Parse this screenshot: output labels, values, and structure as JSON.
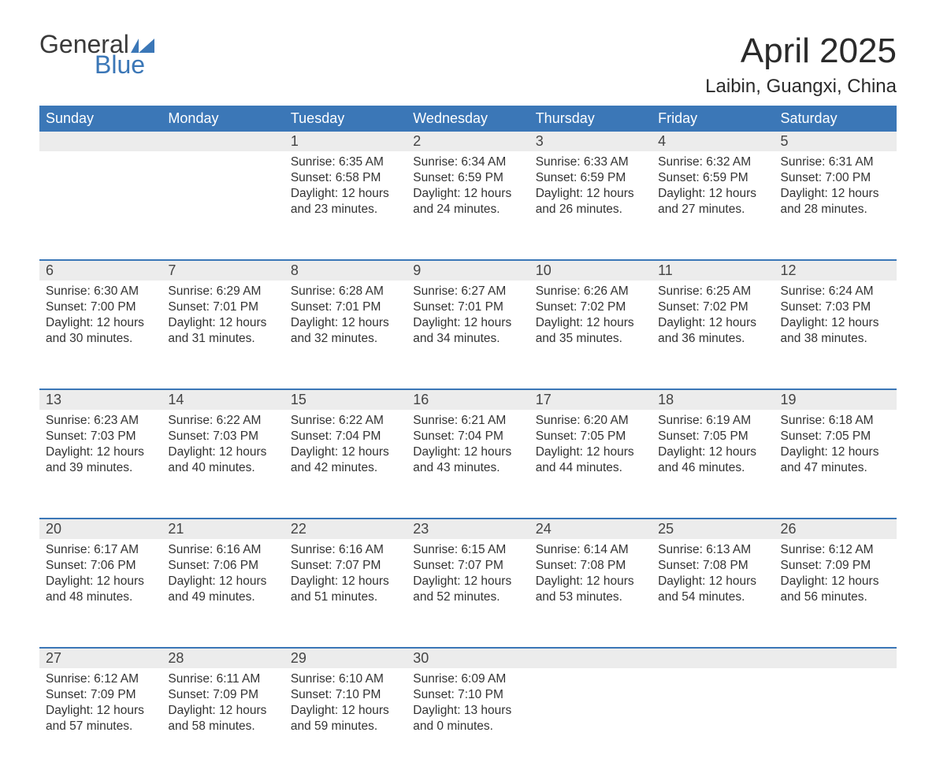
{
  "logo": {
    "text_general": "General",
    "text_blue": "Blue",
    "flag_color": "#3b77b7"
  },
  "title": "April 2025",
  "location": "Laibin, Guangxi, China",
  "colors": {
    "header_bg": "#3b77b7",
    "header_text": "#ffffff",
    "daynum_bg": "#ececec",
    "week_divider": "#3b77b7",
    "body_text": "#333333",
    "background": "#ffffff"
  },
  "typography": {
    "title_fontsize": 44,
    "location_fontsize": 24,
    "weekday_fontsize": 18,
    "daynum_fontsize": 18,
    "detail_fontsize": 15.5
  },
  "weekdays": [
    "Sunday",
    "Monday",
    "Tuesday",
    "Wednesday",
    "Thursday",
    "Friday",
    "Saturday"
  ],
  "weeks": [
    [
      null,
      null,
      {
        "d": "1",
        "sr": "Sunrise: 6:35 AM",
        "ss": "Sunset: 6:58 PM",
        "dl": "Daylight: 12 hours and 23 minutes."
      },
      {
        "d": "2",
        "sr": "Sunrise: 6:34 AM",
        "ss": "Sunset: 6:59 PM",
        "dl": "Daylight: 12 hours and 24 minutes."
      },
      {
        "d": "3",
        "sr": "Sunrise: 6:33 AM",
        "ss": "Sunset: 6:59 PM",
        "dl": "Daylight: 12 hours and 26 minutes."
      },
      {
        "d": "4",
        "sr": "Sunrise: 6:32 AM",
        "ss": "Sunset: 6:59 PM",
        "dl": "Daylight: 12 hours and 27 minutes."
      },
      {
        "d": "5",
        "sr": "Sunrise: 6:31 AM",
        "ss": "Sunset: 7:00 PM",
        "dl": "Daylight: 12 hours and 28 minutes."
      }
    ],
    [
      {
        "d": "6",
        "sr": "Sunrise: 6:30 AM",
        "ss": "Sunset: 7:00 PM",
        "dl": "Daylight: 12 hours and 30 minutes."
      },
      {
        "d": "7",
        "sr": "Sunrise: 6:29 AM",
        "ss": "Sunset: 7:01 PM",
        "dl": "Daylight: 12 hours and 31 minutes."
      },
      {
        "d": "8",
        "sr": "Sunrise: 6:28 AM",
        "ss": "Sunset: 7:01 PM",
        "dl": "Daylight: 12 hours and 32 minutes."
      },
      {
        "d": "9",
        "sr": "Sunrise: 6:27 AM",
        "ss": "Sunset: 7:01 PM",
        "dl": "Daylight: 12 hours and 34 minutes."
      },
      {
        "d": "10",
        "sr": "Sunrise: 6:26 AM",
        "ss": "Sunset: 7:02 PM",
        "dl": "Daylight: 12 hours and 35 minutes."
      },
      {
        "d": "11",
        "sr": "Sunrise: 6:25 AM",
        "ss": "Sunset: 7:02 PM",
        "dl": "Daylight: 12 hours and 36 minutes."
      },
      {
        "d": "12",
        "sr": "Sunrise: 6:24 AM",
        "ss": "Sunset: 7:03 PM",
        "dl": "Daylight: 12 hours and 38 minutes."
      }
    ],
    [
      {
        "d": "13",
        "sr": "Sunrise: 6:23 AM",
        "ss": "Sunset: 7:03 PM",
        "dl": "Daylight: 12 hours and 39 minutes."
      },
      {
        "d": "14",
        "sr": "Sunrise: 6:22 AM",
        "ss": "Sunset: 7:03 PM",
        "dl": "Daylight: 12 hours and 40 minutes."
      },
      {
        "d": "15",
        "sr": "Sunrise: 6:22 AM",
        "ss": "Sunset: 7:04 PM",
        "dl": "Daylight: 12 hours and 42 minutes."
      },
      {
        "d": "16",
        "sr": "Sunrise: 6:21 AM",
        "ss": "Sunset: 7:04 PM",
        "dl": "Daylight: 12 hours and 43 minutes."
      },
      {
        "d": "17",
        "sr": "Sunrise: 6:20 AM",
        "ss": "Sunset: 7:05 PM",
        "dl": "Daylight: 12 hours and 44 minutes."
      },
      {
        "d": "18",
        "sr": "Sunrise: 6:19 AM",
        "ss": "Sunset: 7:05 PM",
        "dl": "Daylight: 12 hours and 46 minutes."
      },
      {
        "d": "19",
        "sr": "Sunrise: 6:18 AM",
        "ss": "Sunset: 7:05 PM",
        "dl": "Daylight: 12 hours and 47 minutes."
      }
    ],
    [
      {
        "d": "20",
        "sr": "Sunrise: 6:17 AM",
        "ss": "Sunset: 7:06 PM",
        "dl": "Daylight: 12 hours and 48 minutes."
      },
      {
        "d": "21",
        "sr": "Sunrise: 6:16 AM",
        "ss": "Sunset: 7:06 PM",
        "dl": "Daylight: 12 hours and 49 minutes."
      },
      {
        "d": "22",
        "sr": "Sunrise: 6:16 AM",
        "ss": "Sunset: 7:07 PM",
        "dl": "Daylight: 12 hours and 51 minutes."
      },
      {
        "d": "23",
        "sr": "Sunrise: 6:15 AM",
        "ss": "Sunset: 7:07 PM",
        "dl": "Daylight: 12 hours and 52 minutes."
      },
      {
        "d": "24",
        "sr": "Sunrise: 6:14 AM",
        "ss": "Sunset: 7:08 PM",
        "dl": "Daylight: 12 hours and 53 minutes."
      },
      {
        "d": "25",
        "sr": "Sunrise: 6:13 AM",
        "ss": "Sunset: 7:08 PM",
        "dl": "Daylight: 12 hours and 54 minutes."
      },
      {
        "d": "26",
        "sr": "Sunrise: 6:12 AM",
        "ss": "Sunset: 7:09 PM",
        "dl": "Daylight: 12 hours and 56 minutes."
      }
    ],
    [
      {
        "d": "27",
        "sr": "Sunrise: 6:12 AM",
        "ss": "Sunset: 7:09 PM",
        "dl": "Daylight: 12 hours and 57 minutes."
      },
      {
        "d": "28",
        "sr": "Sunrise: 6:11 AM",
        "ss": "Sunset: 7:09 PM",
        "dl": "Daylight: 12 hours and 58 minutes."
      },
      {
        "d": "29",
        "sr": "Sunrise: 6:10 AM",
        "ss": "Sunset: 7:10 PM",
        "dl": "Daylight: 12 hours and 59 minutes."
      },
      {
        "d": "30",
        "sr": "Sunrise: 6:09 AM",
        "ss": "Sunset: 7:10 PM",
        "dl": "Daylight: 13 hours and 0 minutes."
      },
      null,
      null,
      null
    ]
  ]
}
